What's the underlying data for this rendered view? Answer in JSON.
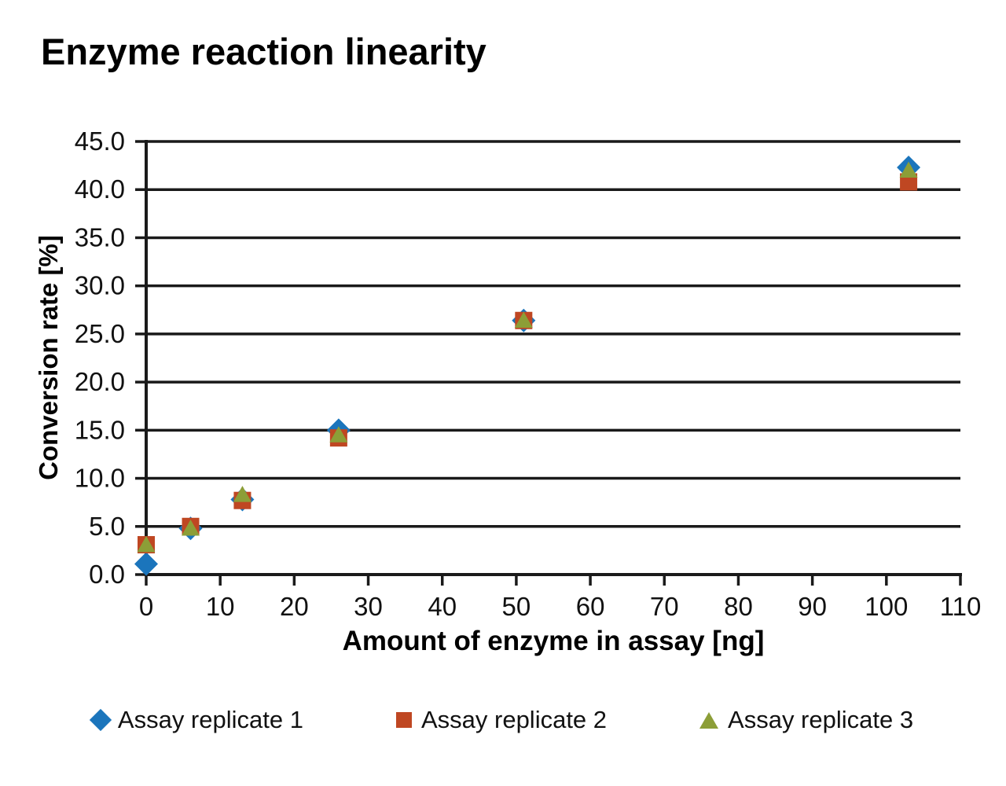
{
  "chart_data": {
    "type": "scatter",
    "title": "Enzyme reaction linearity",
    "xlabel": "Amount of enzyme in assay [ng]",
    "ylabel": "Conversion rate [%]",
    "xlim": [
      0,
      110
    ],
    "ylim": [
      0,
      45
    ],
    "x_ticks": [
      0,
      10,
      20,
      30,
      40,
      50,
      60,
      70,
      80,
      90,
      100,
      110
    ],
    "y_ticks": [
      0,
      5,
      10,
      15,
      20,
      25,
      30,
      35,
      40,
      45
    ],
    "y_tick_format_decimals": 1,
    "grid": "horizontal-only",
    "axis_color": "#1a1a1a",
    "background_color": "#ffffff",
    "legend_position": "bottom-center",
    "series": [
      {
        "name": "Assay replicate 1",
        "marker": "diamond",
        "color": "#1B75BC",
        "x": [
          0,
          6,
          13,
          26,
          51,
          103
        ],
        "values": [
          1.1,
          4.8,
          7.8,
          15.0,
          26.4,
          42.3
        ]
      },
      {
        "name": "Assay replicate 2",
        "marker": "square",
        "color": "#BF4722",
        "x": [
          0,
          6,
          13,
          26,
          51,
          103
        ],
        "values": [
          3.1,
          5.0,
          7.7,
          14.2,
          26.4,
          40.8
        ]
      },
      {
        "name": "Assay replicate 3",
        "marker": "triangle",
        "color": "#8C9E37",
        "x": [
          0,
          6,
          13,
          26,
          51,
          103
        ],
        "values": [
          3.2,
          4.9,
          8.4,
          14.6,
          26.5,
          42.1
        ]
      }
    ]
  }
}
